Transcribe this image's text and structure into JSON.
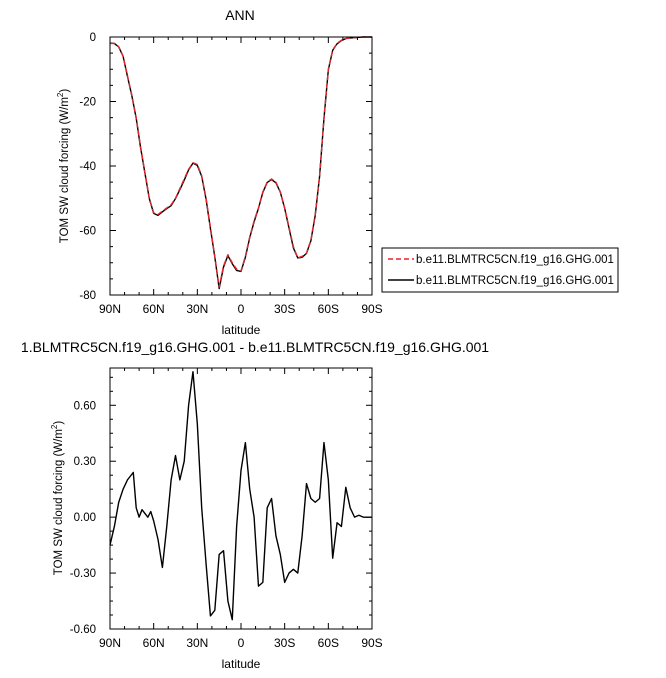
{
  "chart_data": [
    {
      "type": "line",
      "title": "ANN",
      "xlabel": "latitude",
      "ylabel": "TOM SW cloud forcing (W/m",
      "ylabel_superscript": "2",
      "ylabel_close": ")",
      "xlim": [
        90,
        -90
      ],
      "ylim": [
        -80,
        0
      ],
      "x_ticks": [
        90,
        60,
        30,
        0,
        -30,
        -60,
        -90
      ],
      "x_tick_labels": [
        "90N",
        "60N",
        "30N",
        "0",
        "30S",
        "60S",
        "90S"
      ],
      "y_ticks": [
        0,
        -20,
        -40,
        -60,
        -80
      ],
      "y_tick_labels": [
        "0",
        "-20",
        "-40",
        "-60",
        "-80"
      ],
      "legend": {
        "placement": "right",
        "entries": [
          {
            "label": "b.e11.BLMTRC5CN.f19_g16.GHG.001",
            "color": "#e8252a",
            "dash": "dashed"
          },
          {
            "label": "b.e11.BLMTRC5CN.f19_g16.GHG.001",
            "color": "#000000",
            "dash": "solid"
          }
        ]
      },
      "x": [
        90,
        87,
        84,
        81,
        78,
        75,
        72,
        69,
        66,
        63,
        60,
        57,
        54,
        51,
        48,
        45,
        42,
        39,
        36,
        33,
        30,
        27,
        24,
        21,
        18,
        15,
        12,
        9,
        6,
        3,
        0,
        -3,
        -6,
        -9,
        -12,
        -15,
        -18,
        -21,
        -24,
        -27,
        -30,
        -33,
        -36,
        -39,
        -42,
        -45,
        -48,
        -51,
        -54,
        -57,
        -60,
        -63,
        -66,
        -69,
        -72,
        -75,
        -78,
        -81,
        -84,
        -87,
        -90
      ],
      "series": [
        {
          "color": "#e8252a",
          "dash": "dashed",
          "values": [
            -2,
            -2,
            -3,
            -6,
            -12,
            -18,
            -25,
            -34,
            -42,
            -50,
            -54.5,
            -55,
            -54,
            -53,
            -52,
            -50,
            -47,
            -44,
            -41,
            -39,
            -39.5,
            -43,
            -50,
            -59,
            -68,
            -77.5,
            -71,
            -67.5,
            -70,
            -72,
            -72.5,
            -68,
            -62,
            -57,
            -53,
            -48,
            -45,
            -44,
            -45,
            -48,
            -53,
            -59,
            -65,
            -68.5,
            -68,
            -67,
            -63,
            -55,
            -43,
            -25,
            -10,
            -4,
            -2,
            -1,
            -0.5,
            -0.3,
            -0.2,
            -0.1,
            0,
            0,
            0
          ]
        },
        {
          "color": "#000000",
          "dash": "solid",
          "values": [
            -1.9,
            -2,
            -3.1,
            -6,
            -12.2,
            -18.2,
            -25.2,
            -34.3,
            -42.2,
            -50.1,
            -54.7,
            -55.3,
            -54.2,
            -53.2,
            -52.3,
            -50.1,
            -47.3,
            -44.4,
            -41.2,
            -39.1,
            -39.8,
            -43.2,
            -50.3,
            -59.4,
            -68.2,
            -78,
            -71.3,
            -67.8,
            -70.3,
            -72.4,
            -72.7,
            -68.3,
            -62.2,
            -57.3,
            -53.1,
            -48.2,
            -45.1,
            -44.2,
            -45.2,
            -48.1,
            -53.1,
            -59.3,
            -65.4,
            -68.5,
            -68.3,
            -67.1,
            -63.2,
            -55.3,
            -43.2,
            -25.3,
            -10.2,
            -4.1,
            -2.1,
            -1.1,
            -0.5,
            -0.3,
            -0.2,
            -0.1,
            0,
            0,
            0
          ]
        }
      ]
    },
    {
      "type": "line",
      "title": "1.BLMTRC5CN.f19_g16.GHG.001 - b.e11.BLMTRC5CN.f19_g16.GHG.001",
      "xlabel": "latitude",
      "ylabel": "TOM SW cloud forcing (W/m",
      "ylabel_superscript": "2",
      "ylabel_close": ")",
      "xlim": [
        90,
        -90
      ],
      "ylim": [
        -0.6,
        0.8
      ],
      "x_ticks": [
        90,
        60,
        30,
        0,
        -30,
        -60,
        -90
      ],
      "x_tick_labels": [
        "90N",
        "60N",
        "30N",
        "0",
        "30S",
        "60S",
        "90S"
      ],
      "y_ticks": [
        0.6,
        0.3,
        0,
        -0.3,
        -0.6
      ],
      "y_tick_labels": [
        "0.60",
        "0.30",
        "0.00",
        "-0.30",
        "-0.60"
      ],
      "x": [
        90,
        87,
        84,
        81,
        78,
        76,
        74,
        72,
        70,
        68,
        66,
        64,
        62,
        60,
        57,
        54,
        51,
        48,
        45,
        42,
        39,
        36,
        33,
        30,
        27,
        24,
        21,
        18,
        15,
        12,
        9,
        6,
        3,
        0,
        -3,
        -6,
        -9,
        -12,
        -15,
        -18,
        -21,
        -24,
        -27,
        -30,
        -33,
        -36,
        -39,
        -42,
        -45,
        -48,
        -51,
        -54,
        -57,
        -60,
        -63,
        -66,
        -69,
        -72,
        -75,
        -78,
        -81,
        -84,
        -87,
        -90
      ],
      "series": [
        {
          "color": "#000000",
          "dash": "solid",
          "values": [
            -0.15,
            -0.05,
            0.08,
            0.15,
            0.2,
            0.22,
            0.24,
            0.05,
            0.0,
            0.04,
            0.02,
            0.0,
            0.03,
            -0.02,
            -0.12,
            -0.27,
            -0.05,
            0.2,
            0.33,
            0.2,
            0.3,
            0.6,
            0.78,
            0.5,
            0.05,
            -0.25,
            -0.53,
            -0.5,
            -0.2,
            -0.18,
            -0.45,
            -0.55,
            -0.05,
            0.25,
            0.4,
            0.15,
            0.0,
            -0.37,
            -0.35,
            0.05,
            0.1,
            -0.1,
            -0.2,
            -0.35,
            -0.3,
            -0.28,
            -0.3,
            -0.1,
            0.18,
            0.1,
            0.08,
            0.1,
            0.4,
            0.2,
            -0.22,
            -0.03,
            -0.05,
            0.16,
            0.05,
            0.0,
            0.01,
            0.0,
            0.0,
            0.0
          ]
        }
      ]
    }
  ]
}
